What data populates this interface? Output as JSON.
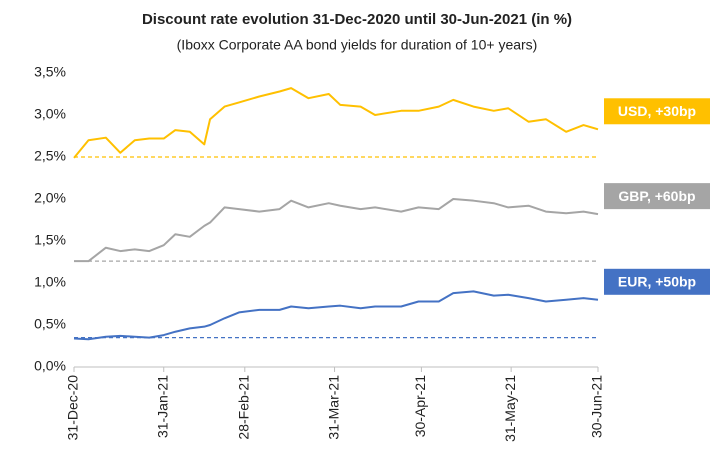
{
  "chart_data": {
    "type": "line",
    "title": "Discount rate evolution 31-Dec-2020 until 30-Jun-2021 (in %)",
    "subtitle": "(Iboxx Corporate AA bond yields for duration of 10+ years)",
    "x": [
      "2020-12-31",
      "2021-01-05",
      "2021-01-11",
      "2021-01-16",
      "2021-01-21",
      "2021-01-26",
      "2021-01-31",
      "2021-02-04",
      "2021-02-09",
      "2021-02-14",
      "2021-02-16",
      "2021-02-21",
      "2021-02-26",
      "2021-03-05",
      "2021-03-12",
      "2021-03-16",
      "2021-03-22",
      "2021-03-29",
      "2021-04-02",
      "2021-04-09",
      "2021-04-14",
      "2021-04-23",
      "2021-04-29",
      "2021-05-06",
      "2021-05-11",
      "2021-05-18",
      "2021-05-25",
      "2021-05-30",
      "2021-06-06",
      "2021-06-12",
      "2021-06-19",
      "2021-06-25",
      "2021-06-30"
    ],
    "xlim": [
      "2020-12-31",
      "2021-06-30"
    ],
    "xticks": [
      {
        "value": "2020-12-31",
        "label": "31-Dec-20"
      },
      {
        "value": "2021-01-31",
        "label": "31-Jan-21"
      },
      {
        "value": "2021-02-28",
        "label": "28-Feb-21"
      },
      {
        "value": "2021-03-31",
        "label": "31-Mar-21"
      },
      {
        "value": "2021-04-30",
        "label": "30-Apr-21"
      },
      {
        "value": "2021-05-31",
        "label": "31-May-21"
      },
      {
        "value": "2021-06-30",
        "label": "30-Jun-21"
      }
    ],
    "ylim": [
      0,
      3.5
    ],
    "yticks": [
      {
        "value": 0,
        "label": "0,0%"
      },
      {
        "value": 0.5,
        "label": "0,5%"
      },
      {
        "value": 1,
        "label": "1,0%"
      },
      {
        "value": 1.5,
        "label": "1,5%"
      },
      {
        "value": 2,
        "label": "2,0%"
      },
      {
        "value": 2.5,
        "label": "2,5%"
      },
      {
        "value": 3,
        "label": "3,0%"
      },
      {
        "value": 3.5,
        "label": "3,5%"
      }
    ],
    "series": [
      {
        "name": "USD, +30bp",
        "color": "#ffc000",
        "baseline": 2.5,
        "values": [
          2.49,
          2.7,
          2.73,
          2.55,
          2.7,
          2.72,
          2.72,
          2.82,
          2.8,
          2.65,
          2.95,
          3.1,
          3.15,
          3.22,
          3.28,
          3.32,
          3.2,
          3.25,
          3.12,
          3.1,
          3.0,
          3.05,
          3.05,
          3.1,
          3.18,
          3.1,
          3.05,
          3.08,
          2.92,
          2.95,
          2.8,
          2.88,
          2.83
        ]
      },
      {
        "name": "GBP, +60bp",
        "color": "#a5a5a5",
        "baseline": 1.26,
        "values": [
          1.26,
          1.26,
          1.42,
          1.38,
          1.4,
          1.38,
          1.45,
          1.58,
          1.55,
          1.68,
          1.72,
          1.9,
          1.88,
          1.85,
          1.88,
          1.98,
          1.9,
          1.95,
          1.92,
          1.88,
          1.9,
          1.85,
          1.9,
          1.88,
          2.0,
          1.98,
          1.95,
          1.9,
          1.92,
          1.85,
          1.83,
          1.85,
          1.82
        ]
      },
      {
        "name": "EUR, +50bp",
        "color": "#4472c4",
        "baseline": 0.35,
        "values": [
          0.34,
          0.33,
          0.36,
          0.37,
          0.36,
          0.35,
          0.38,
          0.42,
          0.46,
          0.48,
          0.5,
          0.58,
          0.65,
          0.68,
          0.68,
          0.72,
          0.7,
          0.72,
          0.73,
          0.7,
          0.72,
          0.72,
          0.78,
          0.78,
          0.88,
          0.9,
          0.85,
          0.86,
          0.82,
          0.78,
          0.8,
          0.82,
          0.8
        ]
      }
    ]
  }
}
